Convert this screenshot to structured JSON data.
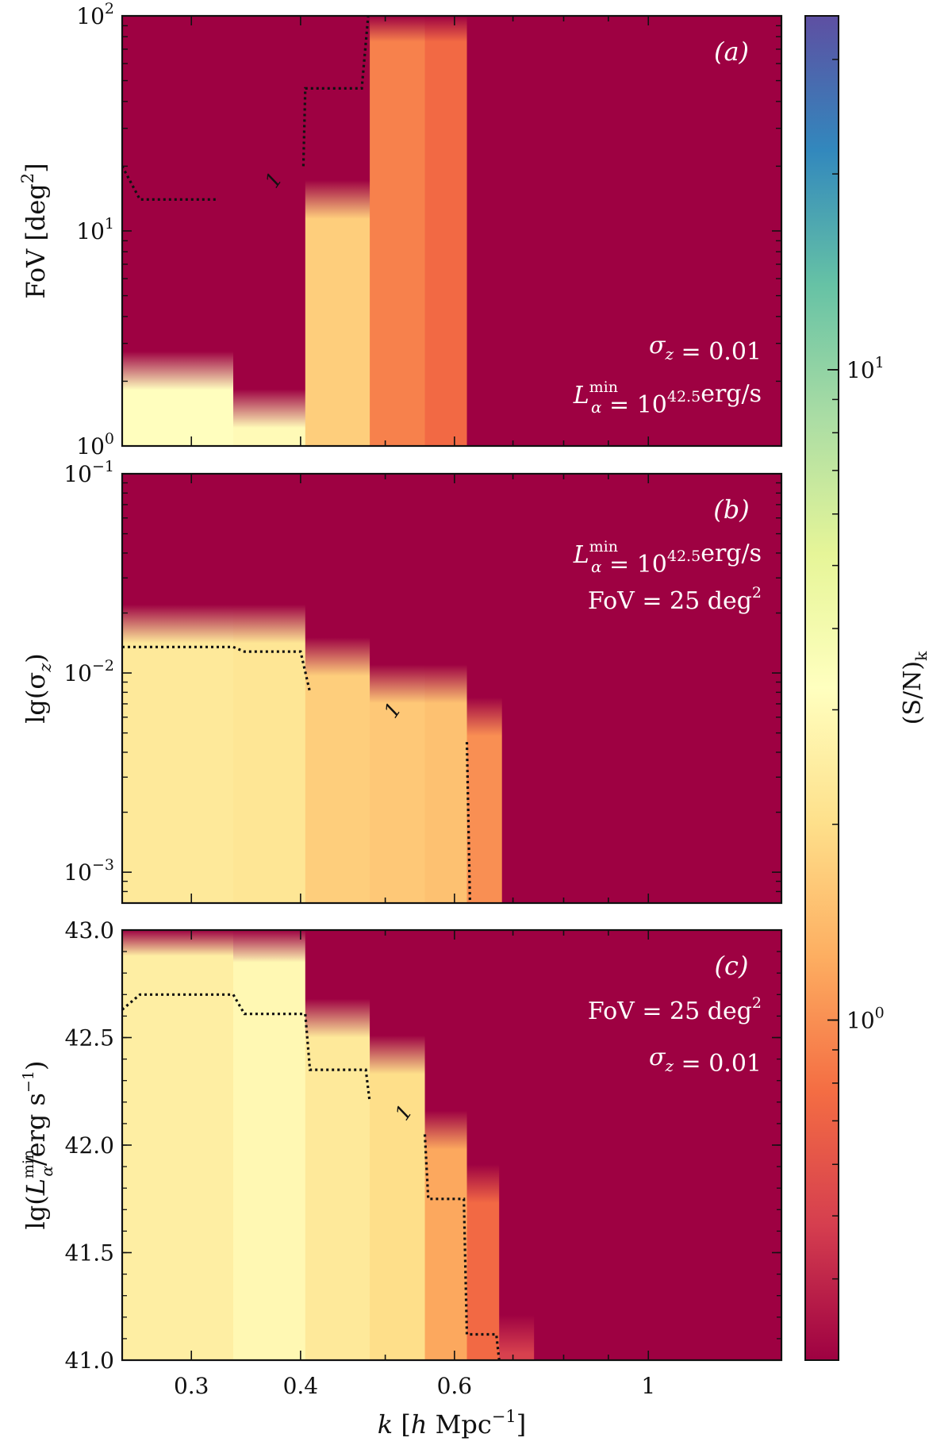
{
  "chart_data": [
    {
      "type": "heatmap",
      "panel_label": "(a)",
      "x_log": true,
      "xlim": [
        0.25,
        1.42
      ],
      "ylabel_parts": {
        "main": "FoV [deg",
        "sup": "2",
        "close": "]"
      },
      "y_log": true,
      "ylim": [
        1,
        100
      ],
      "yticks": [
        {
          "value": 100,
          "base": "10",
          "exp": "2"
        },
        {
          "value": 10,
          "base": "10",
          "exp": "1"
        },
        {
          "value": 1,
          "base": "10",
          "exp": "0"
        }
      ],
      "annotations": [
        {
          "sym": "σ",
          "sub": "z",
          "rest": " = 0.01"
        },
        {
          "sym": "L",
          "sub": "α",
          "sup": "min",
          "rest": " = 10",
          "rest_sup": "42.5",
          "tail": "erg/s"
        }
      ],
      "contour_level": 1,
      "contour_label": "1",
      "contour": [
        [
          0.25,
          20
        ],
        [
          0.262,
          14
        ],
        [
          0.32,
          14
        ],
        [
          0.32,
          14
        ]
      ],
      "contour2": [
        [
          0.403,
          20
        ],
        [
          0.405,
          46
        ],
        [
          0.47,
          46
        ],
        [
          0.478,
          100
        ]
      ],
      "columns": [
        {
          "x0": 0.25,
          "x1": 0.335,
          "cutoff": 2.4,
          "sn": 3.2
        },
        {
          "x0": 0.335,
          "x1": 0.405,
          "cutoff": 1.6,
          "sn": 3.0
        },
        {
          "x0": 0.405,
          "x1": 0.48,
          "cutoff": 15,
          "sn": 1.7
        },
        {
          "x0": 0.48,
          "x1": 0.555,
          "cutoff": 100,
          "sn": 0.9
        },
        {
          "x0": 0.555,
          "x1": 0.62,
          "cutoff": 100,
          "sn": 0.75
        },
        {
          "x0": 0.62,
          "x1": 1.42,
          "cutoff": 100,
          "sn": 0.3
        }
      ]
    },
    {
      "type": "heatmap",
      "panel_label": "(b)",
      "x_log": true,
      "xlim": [
        0.25,
        1.42
      ],
      "ylabel_parts": {
        "main": "lg(σ",
        "sub": "z",
        "close": ")"
      },
      "y_log": true,
      "ylim": [
        0.0007,
        0.1
      ],
      "yticks": [
        {
          "value": 0.1,
          "base": "10",
          "exp": "−1"
        },
        {
          "value": 0.01,
          "base": "10",
          "exp": "−2"
        },
        {
          "value": 0.001,
          "base": "10",
          "exp": "−3"
        }
      ],
      "annotations": [
        {
          "sym": "L",
          "sub": "α",
          "sup": "min",
          "rest": " = 10",
          "rest_sup": "42.5",
          "tail": "erg/s"
        },
        {
          "sym": "",
          "rest": "FoV = 25 deg",
          "rest_sup": "2"
        }
      ],
      "contour_level": 1,
      "contour_label": "1",
      "contour": [
        [
          0.25,
          0.0135
        ],
        [
          0.335,
          0.0135
        ],
        [
          0.345,
          0.0128
        ],
        [
          0.4,
          0.0128
        ],
        [
          0.41,
          0.008
        ]
      ],
      "contour2": [
        [
          0.62,
          0.0045
        ],
        [
          0.625,
          0.0007
        ]
      ],
      "columns": [
        {
          "x0": 0.25,
          "x1": 0.335,
          "cutoff": 0.019,
          "sn": 2.3
        },
        {
          "x0": 0.335,
          "x1": 0.405,
          "cutoff": 0.019,
          "sn": 2.2
        },
        {
          "x0": 0.405,
          "x1": 0.48,
          "cutoff": 0.013,
          "sn": 1.7
        },
        {
          "x0": 0.48,
          "x1": 0.555,
          "cutoff": 0.0095,
          "sn": 1.6
        },
        {
          "x0": 0.555,
          "x1": 0.62,
          "cutoff": 0.0095,
          "sn": 1.5
        },
        {
          "x0": 0.62,
          "x1": 0.68,
          "cutoff": 0.0065,
          "sn": 1.0
        },
        {
          "x0": 0.68,
          "x1": 1.42,
          "cutoff": 0.0007,
          "sn": 0.3
        }
      ]
    },
    {
      "type": "heatmap",
      "panel_label": "(c)",
      "x_log": true,
      "xlim": [
        0.25,
        1.42
      ],
      "xticks": [
        0.3,
        0.4,
        0.6,
        1
      ],
      "xtick_labels": [
        "0.3",
        "0.4",
        "0.6",
        "1"
      ],
      "xlabel_parts": {
        "k": "k",
        "rest": " [",
        "h": "h",
        "unit": " Mpc",
        "sup": "−1",
        "close": "]"
      },
      "ylabel_parts": {
        "main": "lg(",
        "L": "L",
        "sub": "α",
        "sup": "min",
        "mid": "/erg s",
        "sup2": "−1",
        "close": ")"
      },
      "y_log": false,
      "ylim": [
        41.0,
        43.0
      ],
      "yticks": [
        {
          "value": 43.0,
          "label": "43.0"
        },
        {
          "value": 42.5,
          "label": "42.5"
        },
        {
          "value": 42.0,
          "label": "42.0"
        },
        {
          "value": 41.5,
          "label": "41.5"
        },
        {
          "value": 41.0,
          "label": "41.0"
        }
      ],
      "annotations": [
        {
          "sym": "",
          "rest": "FoV = 25 deg",
          "rest_sup": "2"
        },
        {
          "sym": "σ",
          "sub": "z",
          "rest": " = 0.01"
        }
      ],
      "contour_level": 1,
      "contour_label": "1",
      "contour": [
        [
          0.25,
          42.63
        ],
        [
          0.262,
          42.7
        ],
        [
          0.335,
          42.7
        ],
        [
          0.345,
          42.61
        ],
        [
          0.405,
          42.61
        ],
        [
          0.41,
          42.35
        ],
        [
          0.475,
          42.35
        ],
        [
          0.48,
          42.2
        ]
      ],
      "contour2": [
        [
          0.555,
          42.05
        ],
        [
          0.56,
          41.75
        ],
        [
          0.615,
          41.75
        ],
        [
          0.62,
          41.12
        ],
        [
          0.67,
          41.12
        ],
        [
          0.675,
          41.0
        ]
      ],
      "columns": [
        {
          "x0": 0.25,
          "x1": 0.335,
          "cutoff": 43.0,
          "sn": 2.5
        },
        {
          "x0": 0.335,
          "x1": 0.405,
          "cutoff": 42.97,
          "sn": 2.9
        },
        {
          "x0": 0.405,
          "x1": 0.48,
          "cutoff": 42.62,
          "sn": 2.3
        },
        {
          "x0": 0.48,
          "x1": 0.555,
          "cutoff": 42.45,
          "sn": 2.0
        },
        {
          "x0": 0.555,
          "x1": 0.62,
          "cutoff": 42.1,
          "sn": 1.2
        },
        {
          "x0": 0.62,
          "x1": 0.675,
          "cutoff": 41.85,
          "sn": 0.75
        },
        {
          "x0": 0.675,
          "x1": 0.74,
          "cutoff": 41.15,
          "sn": 0.5
        },
        {
          "x0": 0.74,
          "x1": 1.42,
          "cutoff": 41.0,
          "sn": 0.3
        }
      ]
    }
  ],
  "colorbar": {
    "label": "(S/N)",
    "label_sub": "k",
    "scale": "log",
    "range": [
      0.3,
      35
    ],
    "ticks": [
      {
        "value": 10,
        "base": "10",
        "exp": "1"
      },
      {
        "value": 1,
        "base": "10",
        "exp": "0"
      }
    ],
    "colormap": "Spectral_r",
    "colors": [
      "#9e0142",
      "#d53e4f",
      "#f46d43",
      "#fdae61",
      "#fee08b",
      "#ffffbf",
      "#e6f598",
      "#abdda4",
      "#66c2a5",
      "#3288bd",
      "#5e4fa2"
    ]
  }
}
